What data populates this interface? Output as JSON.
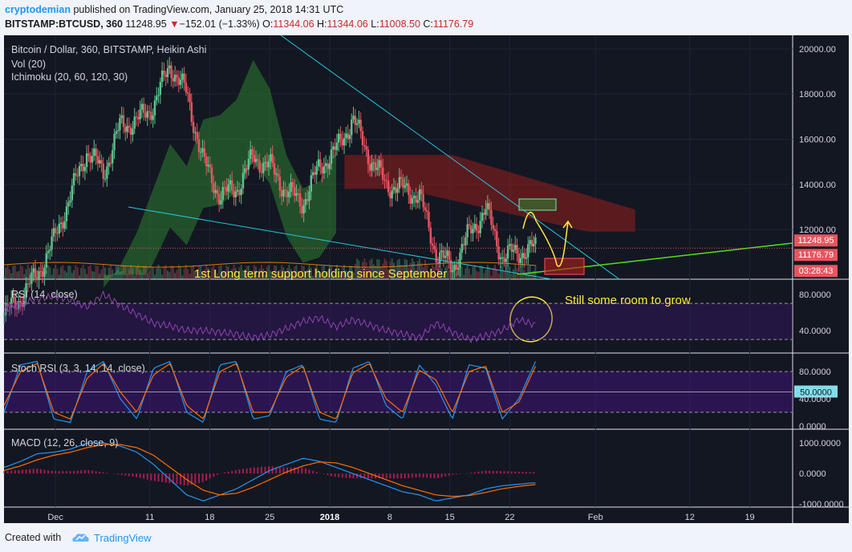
{
  "header": {
    "author": "cryptodemian",
    "published_text": "published on TradingView.com, January 25, 2018 14:31 UTC",
    "symbol": "BITSTAMP:BTCUSD, 360",
    "last": "11248.95",
    "arrow": "▼",
    "change": "−152.01 (−1.33%)",
    "o_label": "O:",
    "o_value": "11344.06",
    "h_label": "H:",
    "h_value": "11344.06",
    "l_label": "L:",
    "l_value": "11008.50",
    "c_label": "C:",
    "c_value": "11176.79"
  },
  "legend": {
    "main": "Bitcoin / Dollar, 360, BITSTAMP, Heikin Ashi",
    "vol": "Vol (20)",
    "ichimoku": "Ichimoku (20, 60, 120, 30)",
    "rsi": "RSI (14, close)",
    "stoch": "Stoch RSI (3, 3, 14, 14, close)",
    "macd": "MACD (12, 26, close, 9)"
  },
  "annotations": {
    "support": "1st Long term support holding since September",
    "room": "Still some room to grow"
  },
  "price_badges": {
    "last": "11248.95",
    "close": "11176.79",
    "countdown": "03:28:43"
  },
  "footer": {
    "created_with": "Created with",
    "brand": "TradingView"
  },
  "colors": {
    "background": "#131722",
    "up_candle": "#5fc48b",
    "down_candle": "#e8555f",
    "kumo_bull": "#2e7d32",
    "kumo_bear": "#8b1e1e",
    "trendline": "#26c6da",
    "support_line": "#52e01c",
    "annotation": "#ffeb3b",
    "rsi": "#8e44ad",
    "stoch_k": "#2196f3",
    "stoch_d": "#ff6d00",
    "macd": "#2196f3",
    "signal": "#ff6d00",
    "hist": "#e91e63"
  },
  "chart_data": [
    {
      "type": "candlestick",
      "title": "Bitcoin / Dollar, 360, BITSTAMP, Heikin Ashi",
      "ylim": [
        9800,
        20600
      ],
      "yticks": [
        "20000.00",
        "18000.00",
        "16000.00",
        "14000.00",
        "12000.00"
      ],
      "xticks": [
        "Dec",
        "11",
        "18",
        "25",
        "2018",
        "8",
        "15",
        "22",
        "Feb",
        "12",
        "19"
      ],
      "close_series": {
        "dates": [
          "2017-11-24",
          "2017-11-27",
          "2017-11-30",
          "2017-12-03",
          "2017-12-05",
          "2017-12-07",
          "2017-12-09",
          "2017-12-11",
          "2017-12-13",
          "2017-12-15",
          "2017-12-17",
          "2017-12-19",
          "2017-12-21",
          "2017-12-22",
          "2017-12-24",
          "2017-12-26",
          "2017-12-28",
          "2017-12-30",
          "2018-01-01",
          "2018-01-03",
          "2018-01-05",
          "2018-01-07",
          "2018-01-09",
          "2018-01-11",
          "2018-01-13",
          "2018-01-15",
          "2018-01-16",
          "2018-01-17",
          "2018-01-18",
          "2018-01-20",
          "2018-01-22",
          "2018-01-24",
          "2018-01-25"
        ],
        "values": [
          8200,
          9000,
          10000,
          11500,
          13500,
          15500,
          14500,
          16600,
          16800,
          17500,
          19300,
          18000,
          15000,
          13500,
          13800,
          15200,
          14800,
          13700,
          13200,
          14800,
          15500,
          16900,
          15200,
          14000,
          13800,
          13500,
          11000,
          10300,
          11800,
          12900,
          10800,
          11000,
          11177
        ]
      },
      "ichimoku_cloud_range": [
        10200,
        15500
      ]
    },
    {
      "type": "line",
      "title": "RSI (14, close)",
      "ylim": [
        15,
        95
      ],
      "yticks": [
        "80.0000",
        "40.0000"
      ],
      "guides": [
        70,
        30
      ],
      "values": [
        62,
        70,
        75,
        78,
        74,
        66,
        80,
        68,
        58,
        48,
        45,
        40,
        40,
        38,
        36,
        32,
        35,
        42,
        50,
        54,
        44,
        52,
        46,
        40,
        36,
        32,
        48,
        38,
        30,
        34,
        40,
        52,
        46
      ]
    },
    {
      "type": "line",
      "title": "Stoch RSI (3, 3, 14, 14, close)",
      "ylim": [
        -5,
        105
      ],
      "yticks": [
        "80.0000",
        "50.0000",
        "40.0000",
        "0.0000"
      ],
      "guides": [
        80,
        20
      ],
      "series": [
        {
          "values": [
            20,
            90,
            95,
            10,
            5,
            80,
            95,
            40,
            10,
            85,
            95,
            20,
            5,
            90,
            95,
            10,
            15,
            80,
            90,
            10,
            5,
            85,
            95,
            30,
            10,
            90,
            60,
            10,
            90,
            85,
            10,
            40,
            95
          ]
        },
        {
          "values": [
            30,
            80,
            92,
            20,
            10,
            70,
            92,
            50,
            20,
            75,
            92,
            30,
            10,
            80,
            92,
            20,
            20,
            72,
            88,
            20,
            10,
            78,
            92,
            40,
            20,
            82,
            68,
            20,
            80,
            88,
            20,
            35,
            88
          ]
        }
      ]
    },
    {
      "type": "line",
      "title": "MACD (12, 26, close, 9)",
      "ylim": [
        -1100,
        1400
      ],
      "yticks": [
        "1000.0000",
        "0.0000",
        "-1000.0000"
      ],
      "series": [
        {
          "values": [
            200,
            400,
            650,
            700,
            800,
            1000,
            1000,
            900,
            700,
            300,
            -200,
            -700,
            -900,
            -700,
            -500,
            -200,
            100,
            300,
            500,
            400,
            200,
            0,
            -200,
            -400,
            -600,
            -700,
            -900,
            -800,
            -700,
            -500,
            -400,
            -350,
            -300
          ]
        },
        {
          "values": [
            100,
            250,
            450,
            600,
            700,
            850,
            950,
            950,
            850,
            600,
            200,
            -200,
            -550,
            -700,
            -650,
            -450,
            -200,
            50,
            250,
            380,
            350,
            200,
            0,
            -200,
            -400,
            -550,
            -700,
            -750,
            -720,
            -620,
            -500,
            -420,
            -360
          ]
        }
      ]
    }
  ]
}
